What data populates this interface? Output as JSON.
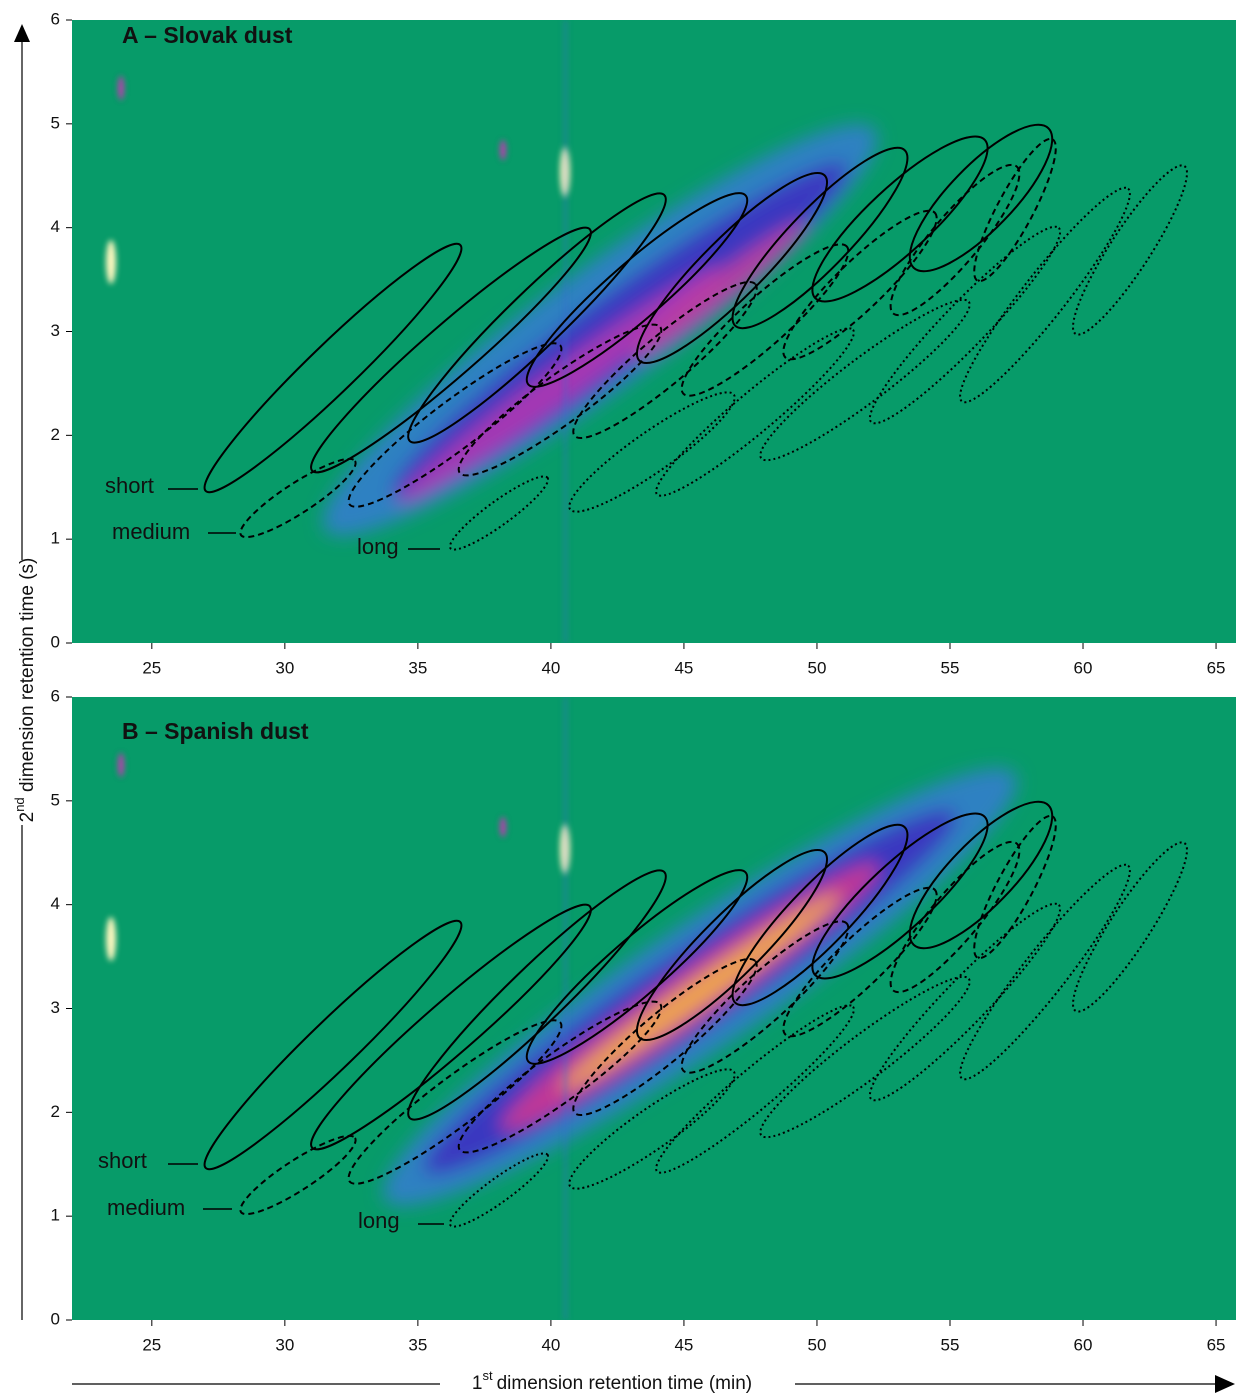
{
  "chart_data": [
    {
      "type": "heatmap",
      "title": "A – Slovak dust",
      "xlim": [
        22,
        65.75
      ],
      "xticks": [
        25,
        30,
        35,
        40,
        45,
        50,
        55,
        60,
        65
      ],
      "ylim": [
        0,
        6
      ],
      "yticks": [
        0,
        1,
        2,
        3,
        4,
        5,
        6
      ],
      "annotations": [
        "short",
        "medium",
        "long"
      ]
    },
    {
      "type": "heatmap",
      "title": "B – Spanish dust",
      "xlim": [
        22,
        65.75
      ],
      "xticks": [
        25,
        30,
        35,
        40,
        45,
        50,
        55,
        60,
        65
      ],
      "ylim": [
        0,
        6
      ],
      "yticks": [
        0,
        1,
        2,
        3,
        4,
        5,
        6
      ],
      "annotations": [
        "short",
        "medium",
        "long"
      ]
    }
  ],
  "x_label": {
    "ordinal": "1",
    "suffix": "st",
    "text": "dimension retention time (min)"
  },
  "y_label": {
    "ordinal": "2",
    "suffix": "nd",
    "text": " dimension retention time (s)"
  }
}
